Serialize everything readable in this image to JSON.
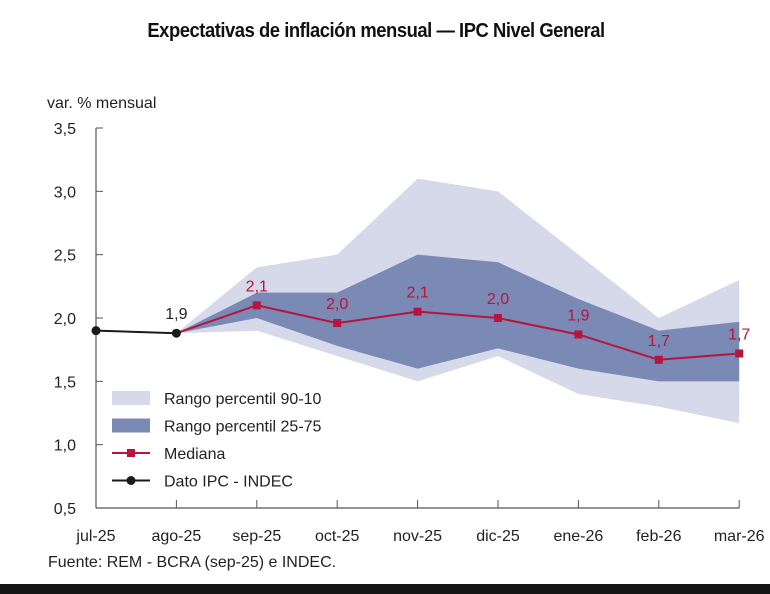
{
  "chart_data": {
    "type": "area",
    "title": "Expectativas de inflación mensual — IPC Nivel General",
    "ylabel": "var. % mensual",
    "xlabel": "",
    "source": "Fuente: REM - BCRA (sep-25) e INDEC.",
    "categories": [
      "jul-25",
      "ago-25",
      "sep-25",
      "oct-25",
      "nov-25",
      "dic-25",
      "ene-26",
      "feb-26",
      "mar-26"
    ],
    "ylim": [
      0.5,
      3.5
    ],
    "yticks": [
      0.5,
      1.0,
      1.5,
      2.0,
      2.5,
      3.0,
      3.5
    ],
    "ytick_labels": [
      "0,5",
      "1,0",
      "1,5",
      "2,0",
      "2,5",
      "3,0",
      "3,5"
    ],
    "grid": false,
    "legend_position": "bottom-left",
    "series": [
      {
        "name": "Rango percentil 90-10",
        "kind": "band",
        "color": "#d5d9e9",
        "x": [
          "ago-25",
          "sep-25",
          "oct-25",
          "nov-25",
          "dic-25",
          "ene-26",
          "feb-26",
          "mar-26"
        ],
        "upper": [
          1.88,
          2.4,
          2.5,
          3.1,
          3.0,
          2.5,
          2.0,
          2.3
        ],
        "lower": [
          1.88,
          1.9,
          1.7,
          1.5,
          1.7,
          1.4,
          1.3,
          1.17
        ]
      },
      {
        "name": "Rango percentil 25-75",
        "kind": "band",
        "color": "#7a8ab5",
        "x": [
          "ago-25",
          "sep-25",
          "oct-25",
          "nov-25",
          "dic-25",
          "ene-26",
          "feb-26",
          "mar-26"
        ],
        "upper": [
          1.88,
          2.2,
          2.2,
          2.5,
          2.44,
          2.15,
          1.9,
          1.97
        ],
        "lower": [
          1.88,
          2.0,
          1.78,
          1.6,
          1.76,
          1.6,
          1.5,
          1.5
        ]
      },
      {
        "name": "Mediana",
        "kind": "line-square",
        "color": "#b5153f",
        "x": [
          "ago-25",
          "sep-25",
          "oct-25",
          "nov-25",
          "dic-25",
          "ene-26",
          "feb-26",
          "mar-26"
        ],
        "values": [
          1.88,
          2.1,
          1.96,
          2.05,
          2.0,
          1.87,
          1.67,
          1.72
        ],
        "labels": [
          null,
          "2,1",
          "2,0",
          "2,1",
          "2,0",
          "1,9",
          "1,7",
          "1,7"
        ]
      },
      {
        "name": "Dato IPC - INDEC",
        "kind": "line-circle",
        "color": "#1a1a1a",
        "x": [
          "jul-25",
          "ago-25"
        ],
        "values": [
          1.9,
          1.88
        ],
        "labels": [
          null,
          "1,9"
        ]
      }
    ]
  }
}
